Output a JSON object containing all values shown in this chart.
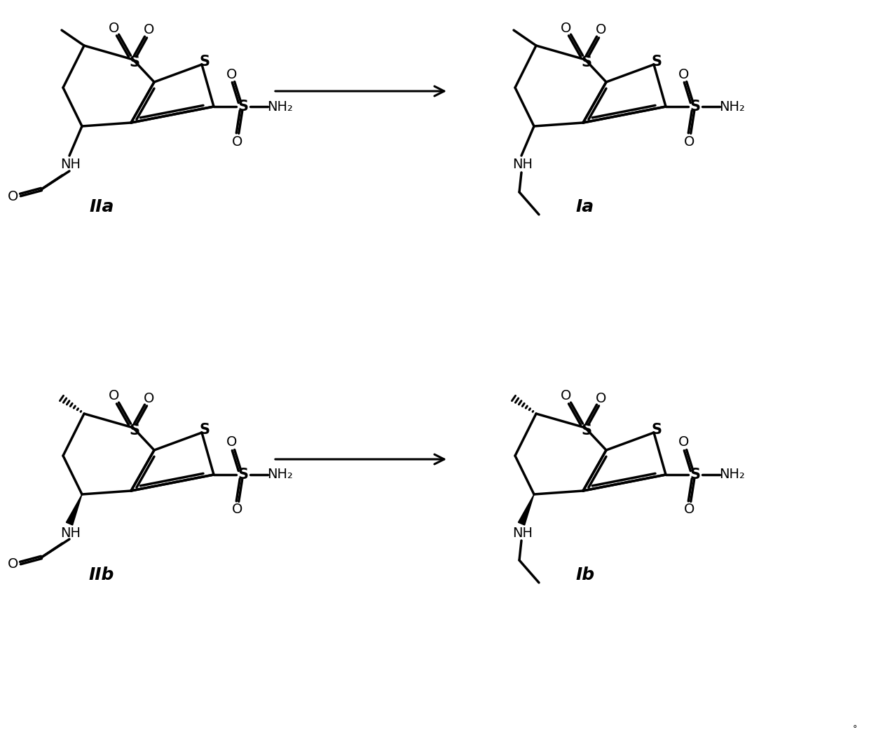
{
  "background": "#ffffff",
  "label_IIa": "IIa",
  "label_Ia": "Ia",
  "label_IIb": "IIb",
  "label_Ib": "Ib",
  "label_fontsize": 18,
  "lw": 2.5,
  "lc": "#000000",
  "tc": "#000000"
}
